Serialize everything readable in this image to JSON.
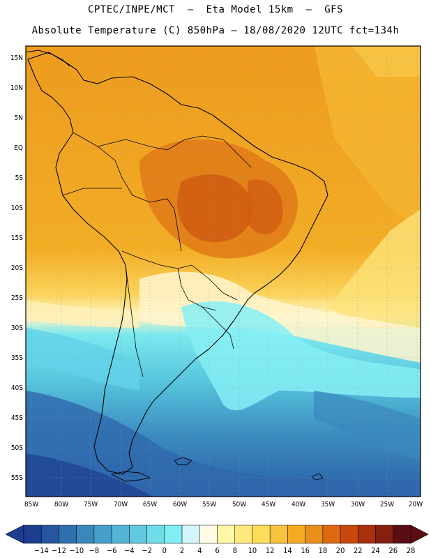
{
  "header": {
    "line1": "CPTEC/INPE/MCT  –  Eta Model 15km  –  GFS",
    "line2": "Absolute Temperature (C) 850hPa – 18/08/2020 12UTC fct=134h"
  },
  "lat_labels": [
    "15N",
    "10N",
    "5N",
    "EQ",
    "5S",
    "10S",
    "15S",
    "20S",
    "25S",
    "30S",
    "35S",
    "40S",
    "45S",
    "50S",
    "55S"
  ],
  "lon_labels": [
    "85W",
    "80W",
    "75W",
    "70W",
    "65W",
    "60W",
    "55W",
    "50W",
    "45W",
    "40W",
    "35W",
    "30W",
    "25W",
    "20W"
  ],
  "colorbar": {
    "labels": [
      "-14",
      "-12",
      "-10",
      "-8",
      "-6",
      "-4",
      "-2",
      "0",
      "2",
      "4",
      "6",
      "8",
      "10",
      "12",
      "14",
      "16",
      "18",
      "20",
      "22",
      "24",
      "26",
      "28"
    ],
    "colors": [
      "#1d3d8f",
      "#25569f",
      "#2f6fae",
      "#3b87bd",
      "#479fcb",
      "#55b5d6",
      "#62c9e0",
      "#6fdcea",
      "#80eef4",
      "#d2f6fb",
      "#fffbe6",
      "#fff7a8",
      "#ffe97a",
      "#fddc5a",
      "#f8c43e",
      "#f2ab22",
      "#e8901a",
      "#dd6a10",
      "#c9470d",
      "#a8300c",
      "#852010",
      "#5a0d14"
    ]
  },
  "colors": {
    "warm_core": "#d86a14",
    "coastline": "#000000"
  }
}
